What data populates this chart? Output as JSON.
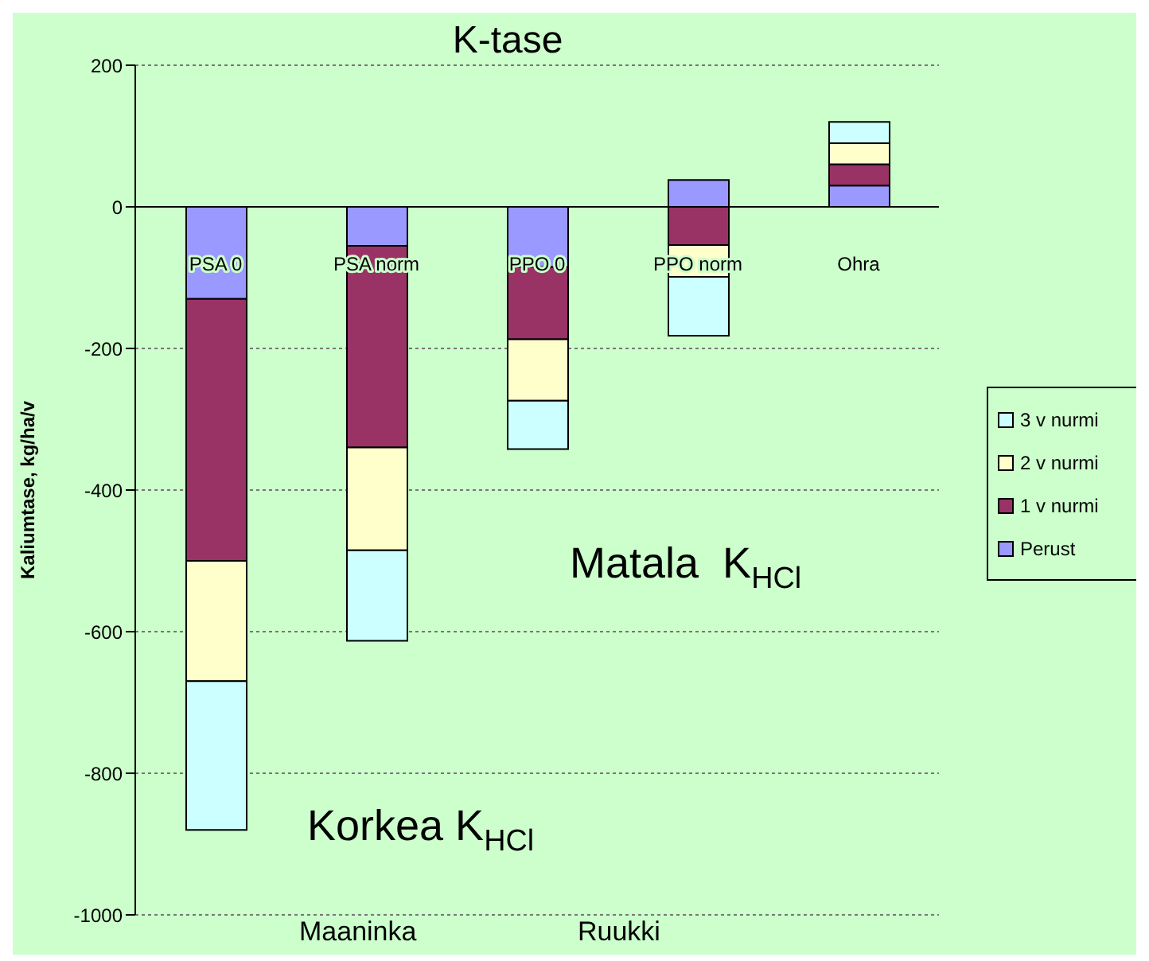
{
  "chart_data": {
    "type": "bar",
    "title": "K-tase",
    "ylabel": "Kaliumtase, kg/ha/v",
    "categories": [
      "PSA 0",
      "PSA norm",
      "PPO 0",
      "PPO norm",
      "Ohra"
    ],
    "stacked": true,
    "series": [
      {
        "name": "Perust",
        "color": "#9999ff",
        "values": [
          -130,
          -55,
          -85,
          38,
          30
        ]
      },
      {
        "name": "1 v nurmi",
        "color": "#993366",
        "values": [
          -370,
          -285,
          -102,
          -54,
          30
        ]
      },
      {
        "name": "2 v nurmi",
        "color": "#ffffcc",
        "values": [
          -170,
          -145,
          -87,
          -45,
          30
        ]
      },
      {
        "name": "3 v nurmi",
        "color": "#ccffff",
        "values": [
          -210,
          -128,
          -68,
          -83,
          30
        ]
      }
    ],
    "ylim": [
      -1000,
      200
    ],
    "yticks": [
      -1000,
      -800,
      -600,
      -400,
      -200,
      0,
      200
    ],
    "grid": "y",
    "legend": "right",
    "annotations": [
      "Korkea K$_{HCl}$",
      "Matala  K$_{HCl}$",
      "Maaninka",
      "Ruukki"
    ]
  }
}
